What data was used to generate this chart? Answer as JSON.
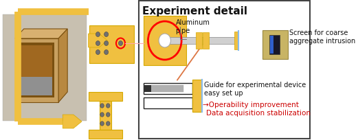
{
  "fig_width": 5.21,
  "fig_height": 2.05,
  "dpi": 100,
  "bg_color": "#ffffff",
  "gold": "#F0C040",
  "gold_edge": "#D4A800",
  "red": "#FF0000",
  "red_text": "#CC0000",
  "black": "#111111",
  "white": "#ffffff",
  "title": "Experiment detail",
  "label_aluminum": "Aluminum\npipe",
  "label_screen": "Screen for coarse\naggregate intrusion",
  "label_guide": "Guide for experimental device\neasy set up",
  "label_op1": "→Operability improvement",
  "label_op2": "Data acquisition stabilization",
  "photo_bg": "#c8c0b0",
  "photo_edge": "#aaaaaa",
  "wood_front": "#c8a060",
  "wood_top": "#d8b070",
  "wood_right": "#b88840",
  "wood_inner": "#7a5010",
  "wood_inner2": "#a06820",
  "concrete": "#909090",
  "pipe_color": "#d0d0d0",
  "pipe_edge": "#888888",
  "screen_bg": "#c8b464",
  "screen_edge": "#998840",
  "screen_slot": "#181828",
  "screen_refl": "#3060cc",
  "gray_dot": "#707070",
  "slot_frame": "#222222",
  "gray_bar": "#b0b0b0",
  "dark_bar": "#303030",
  "blue_line": "#88bbee",
  "orange_line": "#dd7744",
  "pink_line": "#ffaaaa",
  "box_border": "#444444"
}
